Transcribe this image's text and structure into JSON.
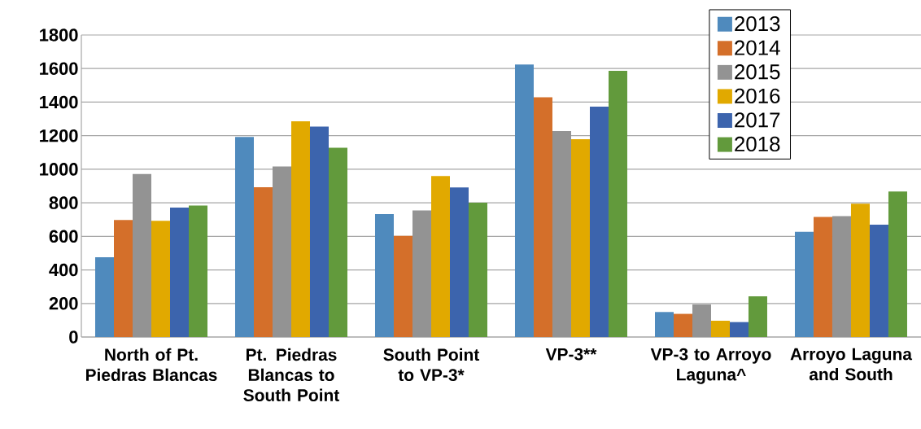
{
  "chart_data": {
    "type": "bar",
    "categories": [
      "North of Pt. Piedras Blancas",
      "Pt. Piedras Blancas to South Point",
      "South Point to VP-3*",
      "VP-3**",
      "VP-3 to Arroyo Laguna^",
      "Arroyo Laguna and South"
    ],
    "series": [
      {
        "name": "2013",
        "color": "#4f8abd",
        "values": [
          475,
          1192,
          733,
          1624,
          149,
          627
        ]
      },
      {
        "name": "2014",
        "color": "#d46f2a",
        "values": [
          698,
          893,
          603,
          1429,
          138,
          716
        ]
      },
      {
        "name": "2015",
        "color": "#939393",
        "values": [
          971,
          1016,
          754,
          1228,
          194,
          721
        ]
      },
      {
        "name": "2016",
        "color": "#e1a900",
        "values": [
          693,
          1286,
          960,
          1179,
          97,
          795
        ]
      },
      {
        "name": "2017",
        "color": "#3c64ad",
        "values": [
          772,
          1254,
          892,
          1373,
          89,
          670
        ]
      },
      {
        "name": "2018",
        "color": "#629a3c",
        "values": [
          783,
          1128,
          801,
          1586,
          243,
          867
        ]
      }
    ],
    "ylim": [
      0,
      1800
    ],
    "yticks": [
      0,
      200,
      400,
      600,
      800,
      1000,
      1200,
      1400,
      1600,
      1800
    ],
    "grid": "y",
    "legend": "top right"
  }
}
